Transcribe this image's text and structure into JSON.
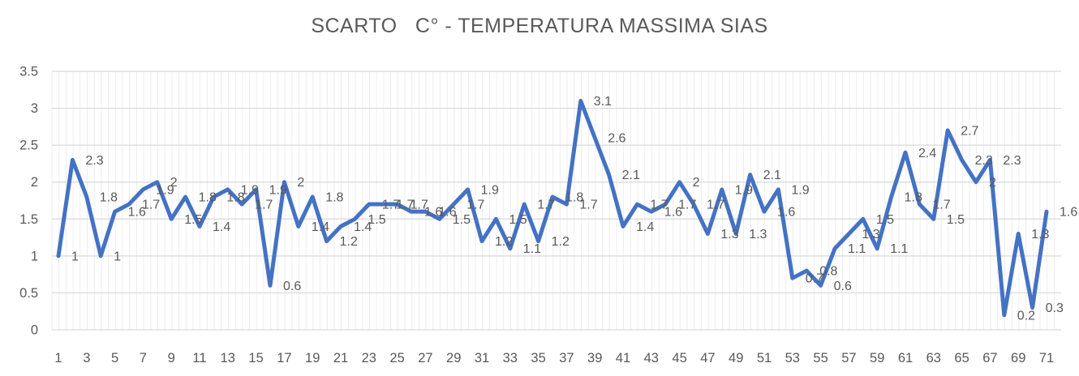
{
  "title": "SCARTO   C° - TEMPERATURA MASSIMA SIAS",
  "chart_data": {
    "type": "line",
    "title": "SCARTO   C° - TEMPERATURA MASSIMA SIAS",
    "xlabel": "",
    "ylabel": "",
    "legend": "none",
    "grid": "horizontal-major and vertical-minor",
    "ylim": [
      0,
      3.5
    ],
    "y_tick_labels": [
      "0",
      "0.5",
      "1",
      "1.5",
      "2",
      "2.5",
      "3",
      "3.5"
    ],
    "x_tick_labels": [
      "1",
      "3",
      "5",
      "7",
      "9",
      "11",
      "13",
      "15",
      "17",
      "19",
      "21",
      "23",
      "25",
      "27",
      "29",
      "31",
      "33",
      "35",
      "37",
      "39",
      "41",
      "43",
      "45",
      "47",
      "49",
      "51",
      "53",
      "55",
      "57",
      "59",
      "61",
      "63",
      "65",
      "67",
      "69",
      "71"
    ],
    "categories": [
      1,
      2,
      3,
      4,
      5,
      6,
      7,
      8,
      9,
      10,
      11,
      12,
      13,
      14,
      15,
      16,
      17,
      18,
      19,
      20,
      21,
      22,
      23,
      24,
      25,
      26,
      27,
      28,
      29,
      30,
      31,
      32,
      33,
      34,
      35,
      36,
      37,
      38,
      39,
      40,
      41,
      42,
      43,
      44,
      45,
      46,
      47,
      48,
      49,
      50,
      51,
      52,
      53,
      54,
      55,
      56,
      57,
      58,
      59,
      60,
      61,
      62,
      63,
      64,
      65,
      66,
      67,
      68,
      69,
      70,
      71
    ],
    "values": [
      1,
      2.3,
      1.8,
      1,
      1.6,
      1.7,
      1.9,
      2,
      1.5,
      1.8,
      1.4,
      1.8,
      1.9,
      1.7,
      1.9,
      0.6,
      2,
      1.4,
      1.8,
      1.2,
      1.4,
      1.5,
      1.7,
      1.7,
      1.7,
      1.6,
      1.6,
      1.5,
      1.7,
      1.9,
      1.2,
      1.5,
      1.1,
      1.7,
      1.2,
      1.8,
      1.7,
      3.1,
      2.6,
      2.1,
      1.4,
      1.7,
      1.6,
      1.7,
      2,
      1.7,
      1.3,
      1.9,
      1.3,
      2.1,
      1.6,
      1.9,
      0.7,
      0.8,
      0.6,
      1.1,
      1.3,
      1.5,
      1.1,
      1.8,
      2.4,
      1.7,
      1.5,
      2.7,
      2.3,
      2,
      2.3,
      0.2,
      1.3,
      0.3,
      1.6
    ],
    "data_labels": "shown right of each point",
    "series_color": "#4472C4",
    "text_color": "#595959",
    "major_gridline_color": "#D9D9D9",
    "minor_gridline_color": "#EDEDED"
  }
}
